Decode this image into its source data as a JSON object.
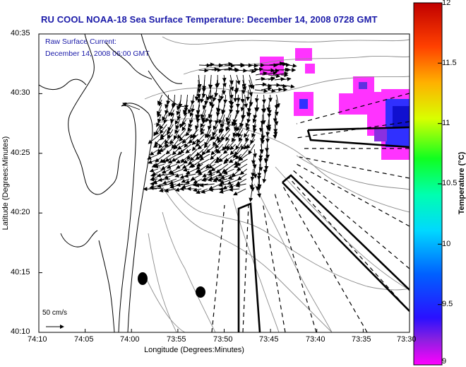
{
  "title": "RU COOL  NOAA-18  Sea Surface Temperature:  December 14, 2008 0728 GMT",
  "subtitle": {
    "line1": "Raw Surface Current:",
    "line2": "December 14, 2008 06:00 GMT"
  },
  "x_axis": {
    "label": "Longitude (Degrees:Minutes)",
    "ticks": [
      "74:10",
      "74:05",
      "74:00",
      "73:55",
      "73:50",
      "73:45",
      "73:40",
      "73:35",
      "73:30"
    ]
  },
  "y_axis": {
    "label": "Latitude (Degrees:Minutes)",
    "ticks": [
      "40:35",
      "40:30",
      "40:25",
      "40:20",
      "40:15",
      "40:10"
    ]
  },
  "colorbar": {
    "label": "Temperature (°C)",
    "ticks": [
      "12",
      "11.5",
      "11",
      "10.5",
      "10",
      "9.5",
      "9"
    ],
    "min": 9,
    "max": 12
  },
  "scale": {
    "label": "50 cm/s"
  },
  "colors": {
    "title": "#1a1aa8",
    "sst_cold": "#ff33ff",
    "sst_blue": "#2020ff"
  }
}
